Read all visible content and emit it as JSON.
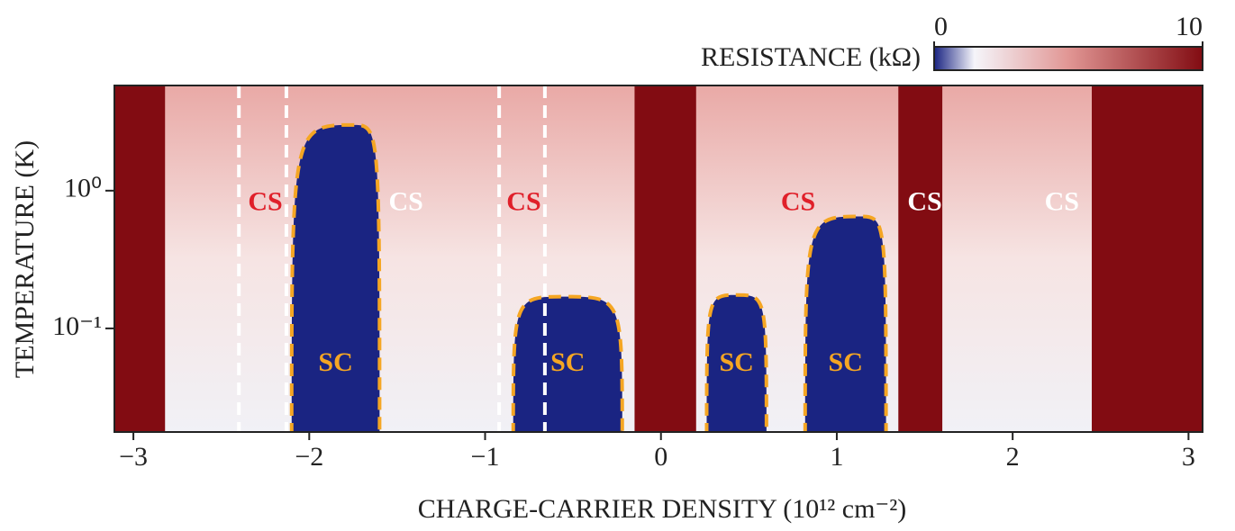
{
  "chart_data": {
    "type": "heatmap",
    "x_label": "CHARGE-CARRIER DENSITY (10¹² cm⁻²)",
    "y_label": "TEMPERATURE (K)",
    "xlim": [
      -3.108,
      3.08
    ],
    "xticks": [
      {
        "value": -3,
        "label": "−3"
      },
      {
        "value": -2,
        "label": "−2"
      },
      {
        "value": -1,
        "label": "−1"
      },
      0,
      1,
      2,
      3
    ],
    "ylim": [
      0.0177,
      5.8
    ],
    "log_y": true,
    "yticks": [
      {
        "value": 0.1,
        "label": "10⁻¹"
      },
      {
        "value": 1,
        "label": "10⁰"
      }
    ],
    "colorbar": {
      "label": "RESISTANCE (kΩ)",
      "clim": [
        0,
        10
      ],
      "ticks": [
        0,
        10
      ]
    },
    "high_resistance": [
      {
        "x0": -3.108,
        "x1": -2.82,
        "value": 10
      },
      {
        "x0": -0.15,
        "x1": 0.2,
        "value": 10
      },
      {
        "x0": 1.35,
        "x1": 1.6,
        "value": 10
      },
      {
        "x0": 2.45,
        "x1": 3.08,
        "value": 10
      }
    ],
    "sc_domes": [
      {
        "label": "SC",
        "x0": -2.1,
        "x1": -1.6,
        "x_peak": -1.75,
        "t_peak": 3.0
      },
      {
        "label": "SC",
        "x0": -0.84,
        "x1": -0.22,
        "x_peak": -0.55,
        "t_peak": 0.17
      },
      {
        "label": "SC",
        "x0": 0.26,
        "x1": 0.6,
        "x_peak": 0.43,
        "t_peak": 0.175
      },
      {
        "label": "SC",
        "x0": 0.82,
        "x1": 1.28,
        "x_peak": 1.13,
        "t_peak": 0.65
      }
    ],
    "sc_color": "#f5a623",
    "cs_boundaries": [
      -2.4,
      -2.13,
      -0.92,
      -0.66
    ],
    "cs_labels": [
      {
        "text": "CS",
        "x": -2.25,
        "y": 0.8,
        "color": "#e0202a"
      },
      {
        "text": "CS",
        "x": -1.45,
        "y": 0.8,
        "color": "#ffffff"
      },
      {
        "text": "CS",
        "x": -0.78,
        "y": 0.8,
        "color": "#e0202a"
      },
      {
        "text": "CS",
        "x": 0.78,
        "y": 0.8,
        "color": "#e0202a"
      },
      {
        "text": "CS",
        "x": 1.5,
        "y": 0.8,
        "color": "#ffffff"
      },
      {
        "text": "CS",
        "x": 2.28,
        "y": 0.8,
        "color": "#ffffff"
      }
    ]
  }
}
